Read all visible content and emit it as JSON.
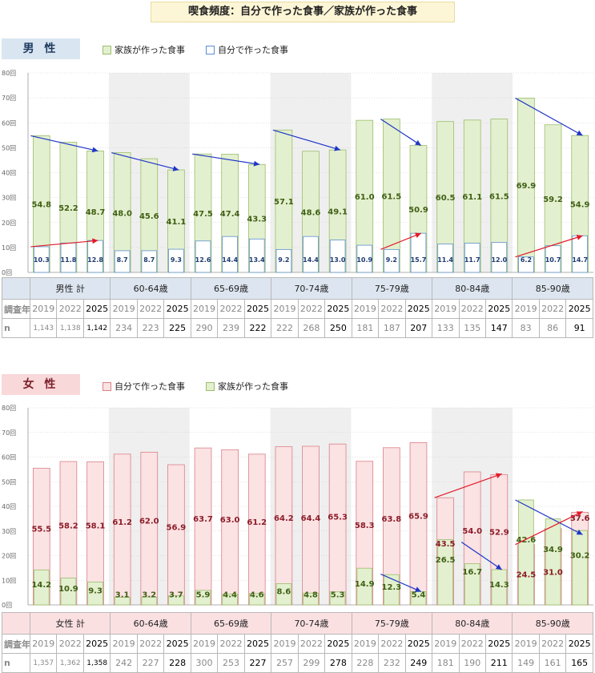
{
  "title": "喫食頻度：自分で作った食事／家族が作った食事",
  "colors": {
    "green_fill": "#e3f0cf",
    "green_stroke": "#9bbd6b",
    "blue_stroke": "#5a8fd0",
    "pink_fill": "#fbe2e3",
    "pink_stroke": "#d98088",
    "arrow_blue": "#1f35c8",
    "arrow_red": "#e21a2a",
    "shade": "#efefef"
  },
  "male": {
    "label": "男 性",
    "legend": {
      "family": "家族が作った食事",
      "self": "自分で作った食事"
    },
    "table": {
      "groups": [
        "男性 計",
        "60-64歳",
        "65-69歳",
        "70-74歳",
        "75-79歳",
        "80-84歳",
        "85-90歳"
      ],
      "row_year_label": "調査年",
      "row_n_label": "n",
      "years": [
        "2019",
        "2022",
        "2025"
      ],
      "n": [
        [
          "1,143",
          "1,138",
          "1,142"
        ],
        [
          "234",
          "223",
          "225"
        ],
        [
          "290",
          "239",
          "222"
        ],
        [
          "222",
          "268",
          "250"
        ],
        [
          "181",
          "187",
          "207"
        ],
        [
          "133",
          "135",
          "147"
        ],
        [
          "83",
          "86",
          "91"
        ]
      ]
    }
  },
  "female": {
    "label": "女 性",
    "legend": {
      "self": "自分で作った食事",
      "family": "家族が作った食事"
    },
    "table": {
      "groups": [
        "女性 計",
        "60-64歳",
        "65-69歳",
        "70-74歳",
        "75-79歳",
        "80-84歳",
        "85-90歳"
      ],
      "row_year_label": "調査年",
      "row_n_label": "n",
      "years": [
        "2019",
        "2022",
        "2025"
      ],
      "n": [
        [
          "1,357",
          "1,362",
          "1,358"
        ],
        [
          "242",
          "227",
          "228"
        ],
        [
          "300",
          "253",
          "227"
        ],
        [
          "257",
          "299",
          "278"
        ],
        [
          "228",
          "232",
          "249"
        ],
        [
          "181",
          "190",
          "211"
        ],
        [
          "149",
          "161",
          "165"
        ]
      ]
    }
  },
  "chart_data": [
    {
      "type": "bar",
      "panel": "male",
      "ylim": [
        0,
        80
      ],
      "yticks": [
        "0回",
        "10回",
        "20回",
        "30回",
        "40回",
        "50回",
        "60回",
        "70回",
        "80回"
      ],
      "categories": [
        "男性 計 2019",
        "男性 計 2022",
        "男性 計 2025",
        "60-64歳 2019",
        "60-64歳 2022",
        "60-64歳 2025",
        "65-69歳 2019",
        "65-69歳 2022",
        "65-69歳 2025",
        "70-74歳 2019",
        "70-74歳 2022",
        "70-74歳 2025",
        "75-79歳 2019",
        "75-79歳 2022",
        "75-79歳 2025",
        "80-84歳 2019",
        "80-84歳 2022",
        "80-84歳 2025",
        "85-90歳 2019",
        "85-90歳 2022",
        "85-90歳 2025"
      ],
      "series": [
        {
          "name": "家族が作った食事",
          "values": [
            54.8,
            52.2,
            48.7,
            48.0,
            45.6,
            41.1,
            47.5,
            47.4,
            43.3,
            57.1,
            48.6,
            49.1,
            61.0,
            61.5,
            50.9,
            60.5,
            61.1,
            61.5,
            69.9,
            59.2,
            54.9
          ]
        },
        {
          "name": "自分で作った食事",
          "values": [
            10.3,
            11.8,
            12.8,
            8.7,
            8.7,
            9.3,
            12.6,
            14.4,
            13.4,
            9.2,
            14.4,
            13.0,
            10.9,
            9.2,
            15.7,
            11.4,
            11.7,
            12.0,
            6.2,
            10.7,
            14.7
          ]
        }
      ]
    },
    {
      "type": "bar",
      "panel": "female",
      "ylim": [
        0,
        80
      ],
      "yticks": [
        "0回",
        "10回",
        "20回",
        "30回",
        "40回",
        "50回",
        "60回",
        "70回",
        "80回"
      ],
      "categories": [
        "女性 計 2019",
        "女性 計 2022",
        "女性 計 2025",
        "60-64歳 2019",
        "60-64歳 2022",
        "60-64歳 2025",
        "65-69歳 2019",
        "65-69歳 2022",
        "65-69歳 2025",
        "70-74歳 2019",
        "70-74歳 2022",
        "70-74歳 2025",
        "75-79歳 2019",
        "75-79歳 2022",
        "75-79歳 2025",
        "80-84歳 2019",
        "80-84歳 2022",
        "80-84歳 2025",
        "85-90歳 2019",
        "85-90歳 2022",
        "85-90歳 2025"
      ],
      "series": [
        {
          "name": "自分で作った食事",
          "values": [
            55.5,
            58.2,
            58.1,
            61.2,
            62.0,
            56.9,
            63.7,
            63.0,
            61.2,
            64.2,
            64.4,
            65.3,
            58.3,
            63.8,
            65.9,
            43.5,
            54.0,
            52.9,
            24.5,
            31.0,
            37.6
          ]
        },
        {
          "name": "家族が作った食事",
          "values": [
            14.2,
            10.9,
            9.3,
            3.1,
            3.2,
            3.7,
            5.9,
            4.4,
            4.6,
            8.6,
            4.8,
            5.3,
            14.9,
            12.3,
            5.4,
            26.5,
            16.7,
            14.3,
            42.6,
            34.9,
            30.2
          ]
        }
      ]
    }
  ]
}
